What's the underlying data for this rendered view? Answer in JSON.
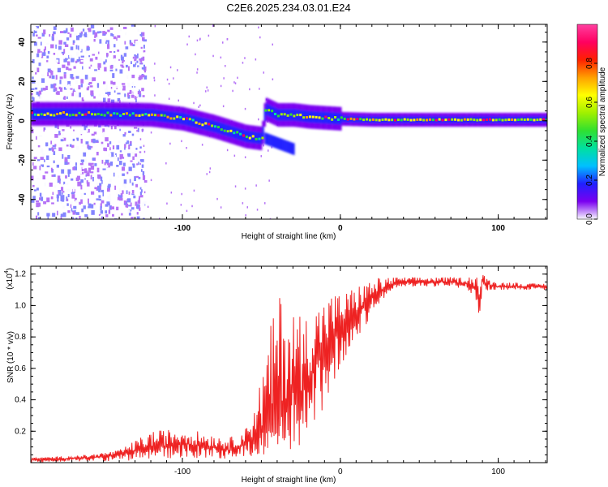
{
  "title": "C2E6.2025.234.03.01.E24",
  "chart_data": [
    {
      "type": "heatmap",
      "name": "spectrogram",
      "xlabel": "Height of straight line (km)",
      "ylabel": "Frequency (Hz)",
      "xlim": [
        -196,
        131
      ],
      "ylim": [
        -50,
        49
      ],
      "xticks": [
        -100,
        0,
        100
      ],
      "xtick_labels": [
        "-100",
        "0",
        "100"
      ],
      "yticks": [
        -40,
        -20,
        0,
        20,
        40
      ],
      "ytick_labels": [
        "-40",
        "-20",
        "0",
        "20",
        "40"
      ],
      "colorbar": {
        "label": "Normalized spectral amplitude",
        "range": [
          0,
          1
        ],
        "ticks": [
          0.0,
          0.2,
          0.4,
          0.6,
          0.8
        ],
        "tick_labels": [
          "0.0",
          "0.2",
          "0.4",
          "0.6",
          "0.8"
        ],
        "colormap": [
          "#f8f8ff",
          "#7a00f0",
          "#2020ff",
          "#00c0ff",
          "#00e0a0",
          "#30e030",
          "#a0f000",
          "#ffff00",
          "#ffa000",
          "#ff2000",
          "#ff0060",
          "#ff40a0"
        ]
      },
      "ridge": {
        "description_points_x": [
          -196,
          -150,
          -120,
          -100,
          -80,
          -60,
          -50,
          -48,
          -40,
          -30,
          -20,
          -10,
          0,
          20,
          50,
          80,
          100,
          131
        ],
        "description_points_y": [
          3.5,
          3.5,
          3,
          1,
          -3,
          -8,
          -9,
          6,
          3,
          3,
          2,
          1.5,
          1,
          0.5,
          0.5,
          0.5,
          0.5,
          0.5
        ]
      }
    },
    {
      "type": "line",
      "name": "snr",
      "xlabel": "Height of straight line (km)",
      "ylabel": "SNR (10 * v/v)",
      "y_scale_note": "(x10",
      "y_scale_exp": "4",
      "xlim": [
        -196,
        131
      ],
      "ylim": [
        0,
        1.25
      ],
      "xticks": [
        -100,
        0,
        100
      ],
      "xtick_labels": [
        "-100",
        "0",
        "100"
      ],
      "yticks": [
        0.2,
        0.4,
        0.6,
        0.8,
        1.0,
        1.2
      ],
      "ytick_labels": [
        "0.2",
        "0.4",
        "0.6",
        "0.8",
        "1.0",
        "1.2"
      ],
      "series": [
        {
          "name": "SNR",
          "color": "#ee2222",
          "x": [
            -196,
            -160,
            -140,
            -120,
            -100,
            -80,
            -70,
            -60,
            -50,
            -45,
            -40,
            -35,
            -30,
            -25,
            -20,
            -15,
            -10,
            -5,
            0,
            5,
            10,
            15,
            20,
            25,
            30,
            35,
            40,
            50,
            60,
            70,
            80,
            85,
            88,
            90,
            95,
            100,
            110,
            120,
            131
          ],
          "values": [
            0.02,
            0.03,
            0.05,
            0.1,
            0.12,
            0.1,
            0.08,
            0.12,
            0.2,
            0.25,
            0.3,
            0.4,
            0.45,
            0.45,
            0.55,
            0.65,
            0.72,
            0.8,
            0.85,
            0.9,
            0.95,
            1.0,
            1.05,
            1.08,
            1.12,
            1.14,
            1.15,
            1.15,
            1.15,
            1.15,
            1.14,
            1.12,
            1.0,
            1.15,
            1.13,
            1.12,
            1.12,
            1.12,
            1.12
          ],
          "envelope_max": [
            0.03,
            0.05,
            0.08,
            0.2,
            0.22,
            0.18,
            0.16,
            0.22,
            0.55,
            0.82,
            1.1,
            1.05,
            1.0,
            0.95,
            0.95,
            1.0,
            1.05,
            1.08,
            1.08,
            1.1,
            1.12,
            1.15,
            1.16,
            1.18,
            1.18,
            1.18,
            1.18,
            1.18,
            1.18,
            1.18,
            1.18,
            1.2,
            1.23,
            1.2,
            1.16,
            1.15,
            1.15,
            1.14,
            1.14
          ],
          "envelope_min": [
            0.0,
            0.01,
            0.01,
            0.02,
            0.03,
            0.03,
            0.02,
            0.03,
            0.05,
            0.05,
            0.06,
            0.05,
            0.1,
            0.05,
            0.05,
            0.2,
            0.35,
            0.5,
            0.6,
            0.7,
            0.8,
            0.85,
            0.95,
            1.0,
            1.08,
            1.1,
            1.12,
            1.12,
            1.12,
            1.12,
            1.1,
            1.05,
            0.93,
            1.08,
            1.1,
            1.1,
            1.1,
            1.1,
            1.1
          ]
        }
      ]
    }
  ]
}
